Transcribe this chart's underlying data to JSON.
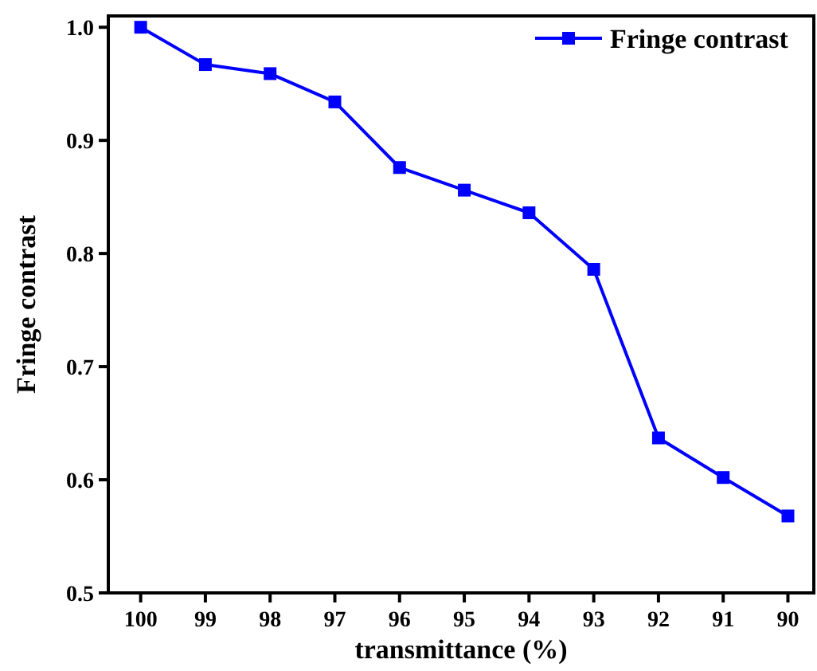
{
  "chart_data": {
    "type": "line",
    "xlabel": "transmittance (%)",
    "ylabel": "Fringe contrast",
    "x": [
      100,
      99,
      98,
      97,
      96,
      95,
      94,
      93,
      92,
      91,
      90
    ],
    "series": [
      {
        "name": "Fringe contrast",
        "color": "#0000ff",
        "values": [
          1.0,
          0.967,
          0.959,
          0.934,
          0.876,
          0.856,
          0.836,
          0.786,
          0.637,
          0.602,
          0.568
        ]
      }
    ],
    "xlim": [
      100.5,
      89.6
    ],
    "xticks": [
      100,
      99,
      98,
      97,
      96,
      95,
      94,
      93,
      92,
      91,
      90
    ],
    "ylim": [
      0.5,
      1.01
    ],
    "yticks": [
      {
        "value": 0.5,
        "label": "0.5"
      },
      {
        "value": 0.6,
        "label": "0.6"
      },
      {
        "value": 0.7,
        "label": "0.7"
      },
      {
        "value": 0.8,
        "label": "0.8"
      },
      {
        "value": 0.9,
        "label": "0.9"
      },
      {
        "value": 1.0,
        "label": "1.0"
      }
    ],
    "grid": false,
    "legend": "top right",
    "marker": "square",
    "line_style": "solid"
  }
}
